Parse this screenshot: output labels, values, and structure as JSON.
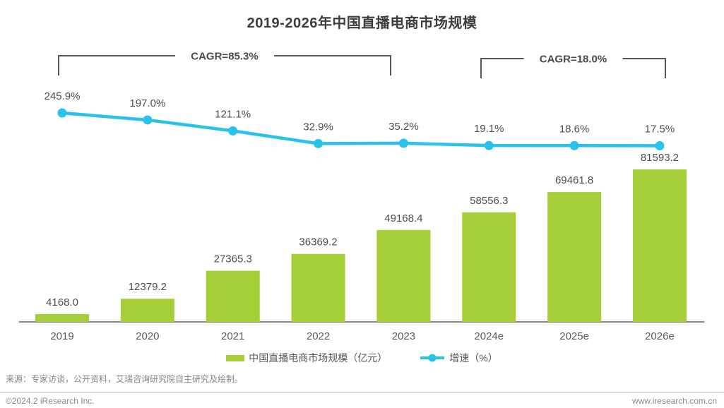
{
  "title": "2019-2026年中国直播电商市场规模",
  "annotations": [
    {
      "label": "CAGR=85.3%",
      "from_category": "2019",
      "to_category": "2023"
    },
    {
      "label": "CAGR=18.0%",
      "from_category": "2024e",
      "to_category": "2026e"
    }
  ],
  "chart_data": {
    "type": "bar+line combo",
    "title": "2019-2026年中国直播电商市场规模",
    "categories": [
      "2019",
      "2020",
      "2021",
      "2022",
      "2023",
      "2024e",
      "2025e",
      "2026e"
    ],
    "series": [
      {
        "name": "中国直播电商市场规模（亿元）",
        "type": "bar",
        "color": "#a5ce39",
        "values": [
          4168.0,
          12379.2,
          27365.3,
          36369.2,
          49168.4,
          58556.3,
          69461.8,
          81593.2
        ]
      },
      {
        "name": "增速（%）",
        "type": "line",
        "color": "#29c2ea",
        "values": [
          245.9,
          197.0,
          121.1,
          32.9,
          35.2,
          19.1,
          18.6,
          17.5
        ]
      }
    ],
    "line_value_suffix": "%",
    "bar_axis": {
      "min": 0,
      "max": 81593.2,
      "visible": false
    },
    "line_axis": {
      "visible": false
    },
    "grid": false,
    "legend_position": "bottom",
    "xlabel": "",
    "ylabel": ""
  },
  "legend": [
    {
      "label": "中国直播电商市场规模（亿元）"
    },
    {
      "label": "增速（%）"
    }
  ],
  "source": "来源：专家访谈，公开资料，艾瑞咨询研究院自主研究及绘制。",
  "footer": {
    "left": "©2024.2 iResearch Inc.",
    "right": "www.iresearch.com.cn"
  }
}
